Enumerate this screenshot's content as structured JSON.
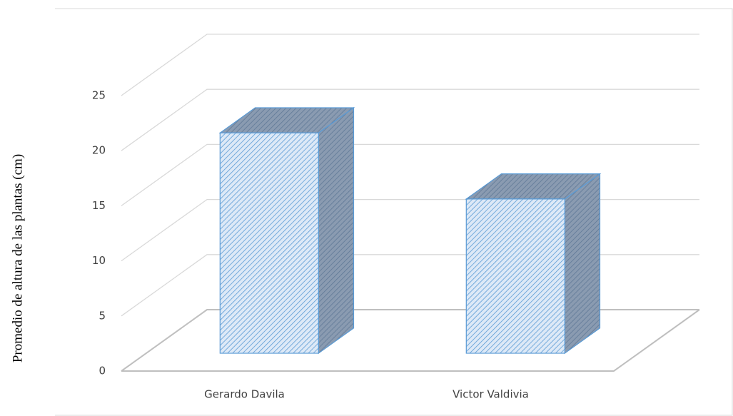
{
  "chart_data": {
    "type": "bar3d",
    "y_label": "Promedio de altura de las plantas (cm)",
    "categories": [
      "Gerardo Davila",
      "Victor Valdivia"
    ],
    "values": [
      20,
      14
    ],
    "color": "#5b9bd5",
    "ylim": [
      0,
      25
    ],
    "yticks": [
      0,
      5,
      10,
      15,
      20,
      25
    ],
    "grid": true
  }
}
